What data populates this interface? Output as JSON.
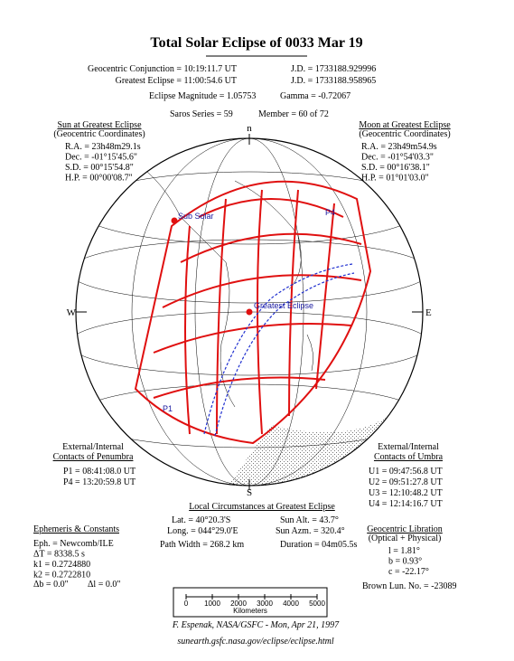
{
  "header": {
    "title": "Total Solar Eclipse of 0033 Mar 19",
    "conjunction": "Geocentric Conjunction =  10:19:11.7 UT",
    "conjunction_jd": "J.D. =  1733188.929996",
    "greatest": "Greatest Eclipse =  11:00:54.6 UT",
    "greatest_jd": "J.D. =  1733188.958965",
    "magnitude": "Eclipse Magnitude = 1.05753",
    "gamma": "Gamma = -0.72067",
    "saros": "Saros Series =  59",
    "member": "Member = 60 of 72"
  },
  "sun": {
    "title": "Sun at Greatest Eclipse",
    "subtitle": "(Geocentric Coordinates)",
    "lines": [
      "R.A. = 23h48m29.1s",
      "Dec. = -01°15'45.6\"",
      "S.D. =  00°15'54.8\"",
      "H.P. =  00°00'08.7\""
    ]
  },
  "moon": {
    "title": "Moon at Greatest Eclipse",
    "subtitle": "(Geocentric Coordinates)",
    "lines": [
      "R.A. = 23h49m54.9s",
      "Dec. = -01°54'03.3\"",
      "S.D. =  00°16'38.1\"",
      "H.P. =  01°01'03.0\""
    ]
  },
  "globe": {
    "north": "n",
    "south": "S",
    "west": "W",
    "east": "E",
    "sub_solar": "Sub Solar",
    "greatest_eclipse": "Greatest Eclipse",
    "p1": "P1",
    "p4": "P4"
  },
  "penumbra": {
    "title": "External/Internal",
    "subtitle": "Contacts of Penumbra",
    "lines": [
      "P1 = 08:41:08.0 UT",
      "P4 = 13:20:59.8 UT"
    ]
  },
  "umbra": {
    "title": "External/Internal",
    "subtitle": "Contacts of Umbra",
    "lines": [
      "U1 = 09:47:56.8 UT",
      "U2 = 09:51:27.8 UT",
      "U3 = 12:10:48.2 UT",
      "U4 = 12:14:16.7 UT"
    ]
  },
  "local": {
    "title": "Local Circumstances at Greatest Eclipse",
    "lat": "Lat. =  40°20.3'S",
    "sun_alt": "Sun Alt. =   43.7°",
    "long": "Long. = 044°29.0'E",
    "sun_azm": "Sun Azm. = 320.4°",
    "path_width": "Path Width = 268.2 km",
    "duration": "Duration =  04m05.5s"
  },
  "ephemeris": {
    "title": "Ephemeris & Constants",
    "lines": [
      "Eph. = Newcomb/ILE",
      "ΔT =   8338.5 s",
      "k1 = 0.2724880",
      "k2 = 0.2722810"
    ],
    "db": "Δb =   0.0\"",
    "dl": "Δl =   0.0\""
  },
  "libration": {
    "title": "Geocentric Libration",
    "subtitle": "(Optical + Physical)",
    "lines": [
      "l =    1.81°",
      "b =    0.93°",
      "c = -22.17°"
    ],
    "brown": "Brown Lun. No. = -23089"
  },
  "scale": {
    "ticks": [
      "0",
      "1000",
      "2000",
      "3000",
      "4000",
      "5000"
    ],
    "unit": "Kilometers"
  },
  "footer": {
    "credit": "F. Espenak, NASA/GSFC - Mon, Apr 21, 1997",
    "url": "sunearth.gsfc.nasa.gov/eclipse/eclipse.html"
  }
}
